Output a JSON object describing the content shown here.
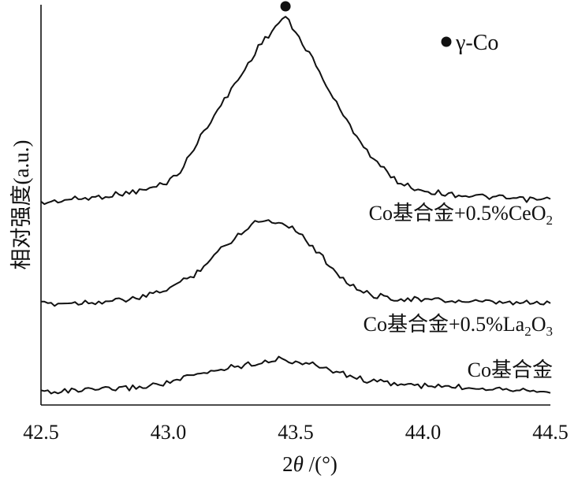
{
  "chart_data": {
    "type": "line",
    "xlabel_parts": {
      "prefix": "2",
      "symbol": "θ",
      "suffix": " /(°)"
    },
    "ylabel": "相对强度(a.u.)",
    "xlim": [
      42.5,
      44.5
    ],
    "x_ticks": [
      "42.5",
      "43.0",
      "43.5",
      "44.0",
      "44.5"
    ],
    "grid": false,
    "legend": {
      "marker": "filled-circle",
      "text": "γ-Co",
      "placement": "top-right"
    },
    "peak_marker": {
      "x": 43.46,
      "label": "γ-Co"
    },
    "series": [
      {
        "name": "Co基合金+0.5%CeO2",
        "label_parts": {
          "main": "Co基合金+0.5%CeO",
          "sub": "2"
        },
        "x": [
          42.5,
          42.6,
          42.7,
          42.8,
          42.9,
          42.95,
          43.0,
          43.05,
          43.1,
          43.15,
          43.2,
          43.25,
          43.3,
          43.35,
          43.4,
          43.44,
          43.46,
          43.5,
          43.55,
          43.6,
          43.65,
          43.7,
          43.75,
          43.8,
          43.85,
          43.9,
          43.95,
          44.0,
          44.1,
          44.2,
          44.3,
          44.4,
          44.5
        ],
        "y": [
          0.0,
          0.02,
          0.03,
          0.05,
          0.07,
          0.09,
          0.12,
          0.18,
          0.3,
          0.42,
          0.52,
          0.63,
          0.73,
          0.85,
          0.93,
          1.0,
          1.02,
          0.93,
          0.83,
          0.7,
          0.57,
          0.45,
          0.35,
          0.25,
          0.18,
          0.12,
          0.09,
          0.07,
          0.05,
          0.04,
          0.03,
          0.02,
          0.02
        ]
      },
      {
        "name": "Co基合金+0.5%La2O3",
        "label_parts": {
          "main": "Co基合金+0.5%La",
          "sub1": "2",
          "mid": "O",
          "sub2": "3"
        },
        "x": [
          42.5,
          42.6,
          42.7,
          42.8,
          42.9,
          42.95,
          43.0,
          43.05,
          43.1,
          43.15,
          43.2,
          43.25,
          43.3,
          43.35,
          43.4,
          43.45,
          43.5,
          43.55,
          43.6,
          43.65,
          43.7,
          43.75,
          43.8,
          43.9,
          44.0,
          44.1,
          44.2,
          44.3,
          44.4,
          44.5
        ],
        "y": [
          0.0,
          0.01,
          0.02,
          0.03,
          0.06,
          0.1,
          0.14,
          0.2,
          0.26,
          0.37,
          0.48,
          0.57,
          0.67,
          0.75,
          0.74,
          0.73,
          0.67,
          0.55,
          0.43,
          0.31,
          0.2,
          0.12,
          0.08,
          0.05,
          0.04,
          0.03,
          0.02,
          0.01,
          0.01,
          0.01
        ]
      },
      {
        "name": "Co基合金",
        "label_parts": {
          "main": "Co基合金"
        },
        "x": [
          42.5,
          42.6,
          42.7,
          42.8,
          42.9,
          43.0,
          43.05,
          43.1,
          43.15,
          43.2,
          43.25,
          43.3,
          43.35,
          43.4,
          43.43,
          43.5,
          43.55,
          43.6,
          43.65,
          43.7,
          43.75,
          43.8,
          43.9,
          44.0,
          44.1,
          44.2,
          44.3,
          44.4,
          44.5
        ],
        "y": [
          0.0,
          0.01,
          0.02,
          0.04,
          0.07,
          0.13,
          0.18,
          0.23,
          0.27,
          0.32,
          0.36,
          0.38,
          0.42,
          0.45,
          0.47,
          0.43,
          0.4,
          0.36,
          0.3,
          0.24,
          0.19,
          0.15,
          0.11,
          0.08,
          0.07,
          0.06,
          0.05,
          0.03,
          0.02
        ]
      }
    ]
  }
}
